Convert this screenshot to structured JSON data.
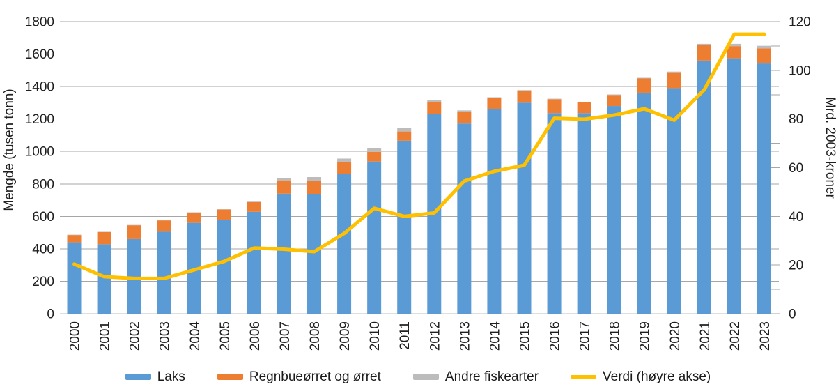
{
  "chart_data": {
    "type": "bar",
    "subtype": "stacked-bars-with-line-overlay",
    "title": "",
    "categories": [
      "2000",
      "2001",
      "2002",
      "2003",
      "2004",
      "2005",
      "2006",
      "2007",
      "2008",
      "2009",
      "2010",
      "2011",
      "2012",
      "2013",
      "2014",
      "2015",
      "2016",
      "2017",
      "2018",
      "2019",
      "2020",
      "2021",
      "2022",
      "2023"
    ],
    "series": [
      {
        "name": "Laks",
        "type": "bar",
        "stack": true,
        "axis": "left",
        "color": "#5B9BD5",
        "values": [
          440,
          428,
          460,
          505,
          560,
          580,
          628,
          740,
          735,
          860,
          938,
          1066,
          1232,
          1172,
          1263,
          1300,
          1236,
          1236,
          1280,
          1362,
          1390,
          1560,
          1574,
          1542
        ]
      },
      {
        "name": "Regnbueørret og ørret",
        "type": "bar",
        "stack": true,
        "axis": "left",
        "color": "#ED7D31",
        "values": [
          45,
          75,
          85,
          70,
          63,
          62,
          60,
          82,
          85,
          76,
          60,
          57,
          70,
          73,
          65,
          74,
          86,
          67,
          68,
          88,
          98,
          98,
          75,
          93
        ]
      },
      {
        "name": "Andre fiskearter",
        "type": "bar",
        "stack": true,
        "axis": "left",
        "color": "#BCBCBC",
        "values": [
          2,
          2,
          2,
          2,
          2,
          2,
          3,
          12,
          22,
          20,
          22,
          22,
          16,
          8,
          6,
          4,
          3,
          3,
          3,
          4,
          4,
          5,
          14,
          16
        ]
      },
      {
        "name": "Verdi (høyre akse)",
        "type": "line",
        "axis": "right",
        "color": "#FFC000",
        "values": [
          20.4,
          15.2,
          14.5,
          14.5,
          18,
          21.5,
          27,
          26.5,
          25.5,
          33,
          43.3,
          40,
          41.4,
          54.5,
          58.5,
          61,
          80.3,
          79.9,
          81.6,
          84.2,
          79.5,
          92,
          114.8,
          114.8
        ]
      }
    ],
    "left_axis": {
      "label": "Mengde (tusen tonn)",
      "min": 0,
      "max": 1800,
      "step": 200,
      "tick_labels": [
        "0",
        "200",
        "400",
        "600",
        "800",
        "1000",
        "1200",
        "1400",
        "1600",
        "1800"
      ]
    },
    "right_axis": {
      "label": "Mrd. 2003-kroner",
      "min": 0,
      "max": 120,
      "step": 20,
      "minor_step": 10,
      "tick_labels": [
        "0",
        "20",
        "40",
        "60",
        "80",
        "100",
        "120"
      ]
    },
    "grid": true,
    "gridline_color": "#A6A6A6",
    "axis_line_color": "#BFBFBF",
    "text_color": "#1f1f1f",
    "legend_position": "bottom"
  }
}
